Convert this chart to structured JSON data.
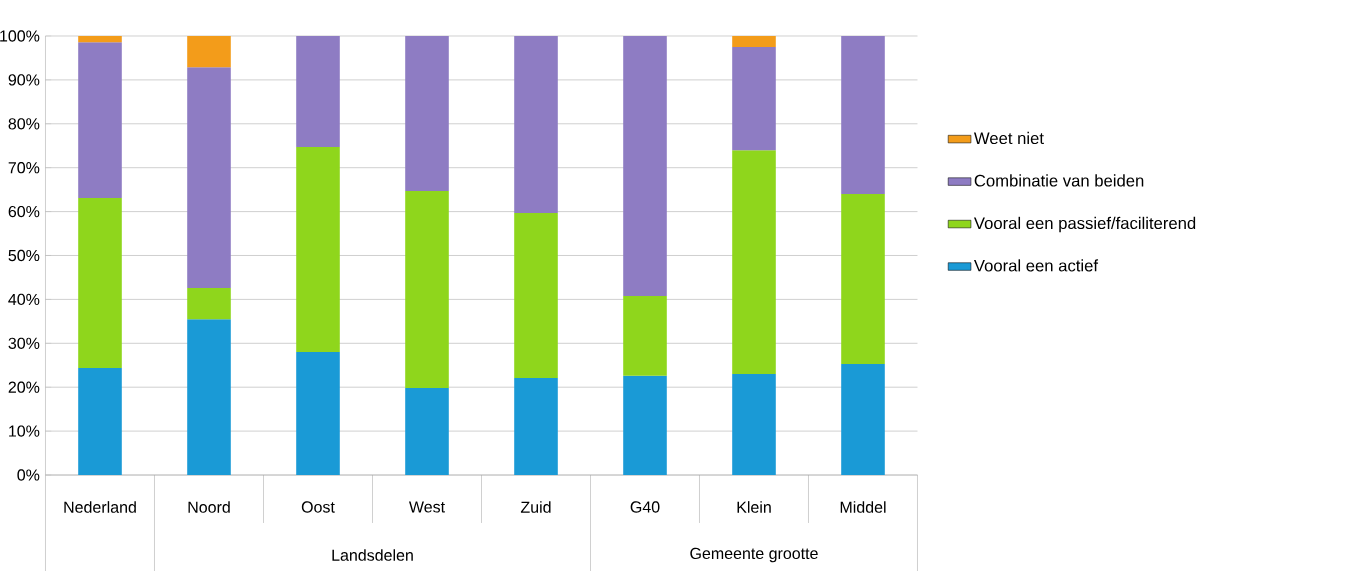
{
  "chart_data": {
    "type": "bar",
    "stacked": true,
    "categories": [
      "Nederland",
      "Noord",
      "Oost",
      "West",
      "Zuid",
      "G40",
      "Klein",
      "Middel"
    ],
    "series": [
      {
        "name": "Vooral een actief",
        "color": "#1a9ad6",
        "values": [
          24.4,
          35.5,
          28,
          19.8,
          22.1,
          22.6,
          23,
          25.3
        ]
      },
      {
        "name": "Vooral een passief/faciliterend",
        "color": "#8fd61c",
        "values": [
          38.7,
          7.1,
          46.7,
          44.9,
          37.6,
          18.2,
          51,
          38.7
        ]
      },
      {
        "name": "Combinatie van beiden",
        "color": "#8e7cc3",
        "values": [
          35.5,
          50.3,
          25.3,
          35.3,
          40.3,
          59.2,
          23.5,
          36
        ]
      },
      {
        "name": "Weet niet",
        "color": "#f39c1a",
        "values": [
          1.4,
          7.1,
          null,
          null,
          null,
          null,
          2.5,
          null
        ]
      }
    ],
    "annotations": [
      "Landsdelen",
      "Gemeente grootte"
    ],
    "ylim": [
      0,
      100
    ],
    "yticks": [
      {
        "value": 0,
        "label": "0%"
      },
      {
        "value": 10,
        "label": "10%"
      },
      {
        "value": 20,
        "label": "20%"
      },
      {
        "value": 30,
        "label": "30%"
      },
      {
        "value": 40,
        "label": "40%"
      },
      {
        "value": 50,
        "label": "50%"
      },
      {
        "value": 60,
        "label": "60%"
      },
      {
        "value": 70,
        "label": "70%"
      },
      {
        "value": 80,
        "label": "80%"
      },
      {
        "value": 90,
        "label": "90%"
      },
      {
        "value": 100,
        "label": "100%"
      }
    ],
    "grid": "y",
    "legend": "right"
  }
}
